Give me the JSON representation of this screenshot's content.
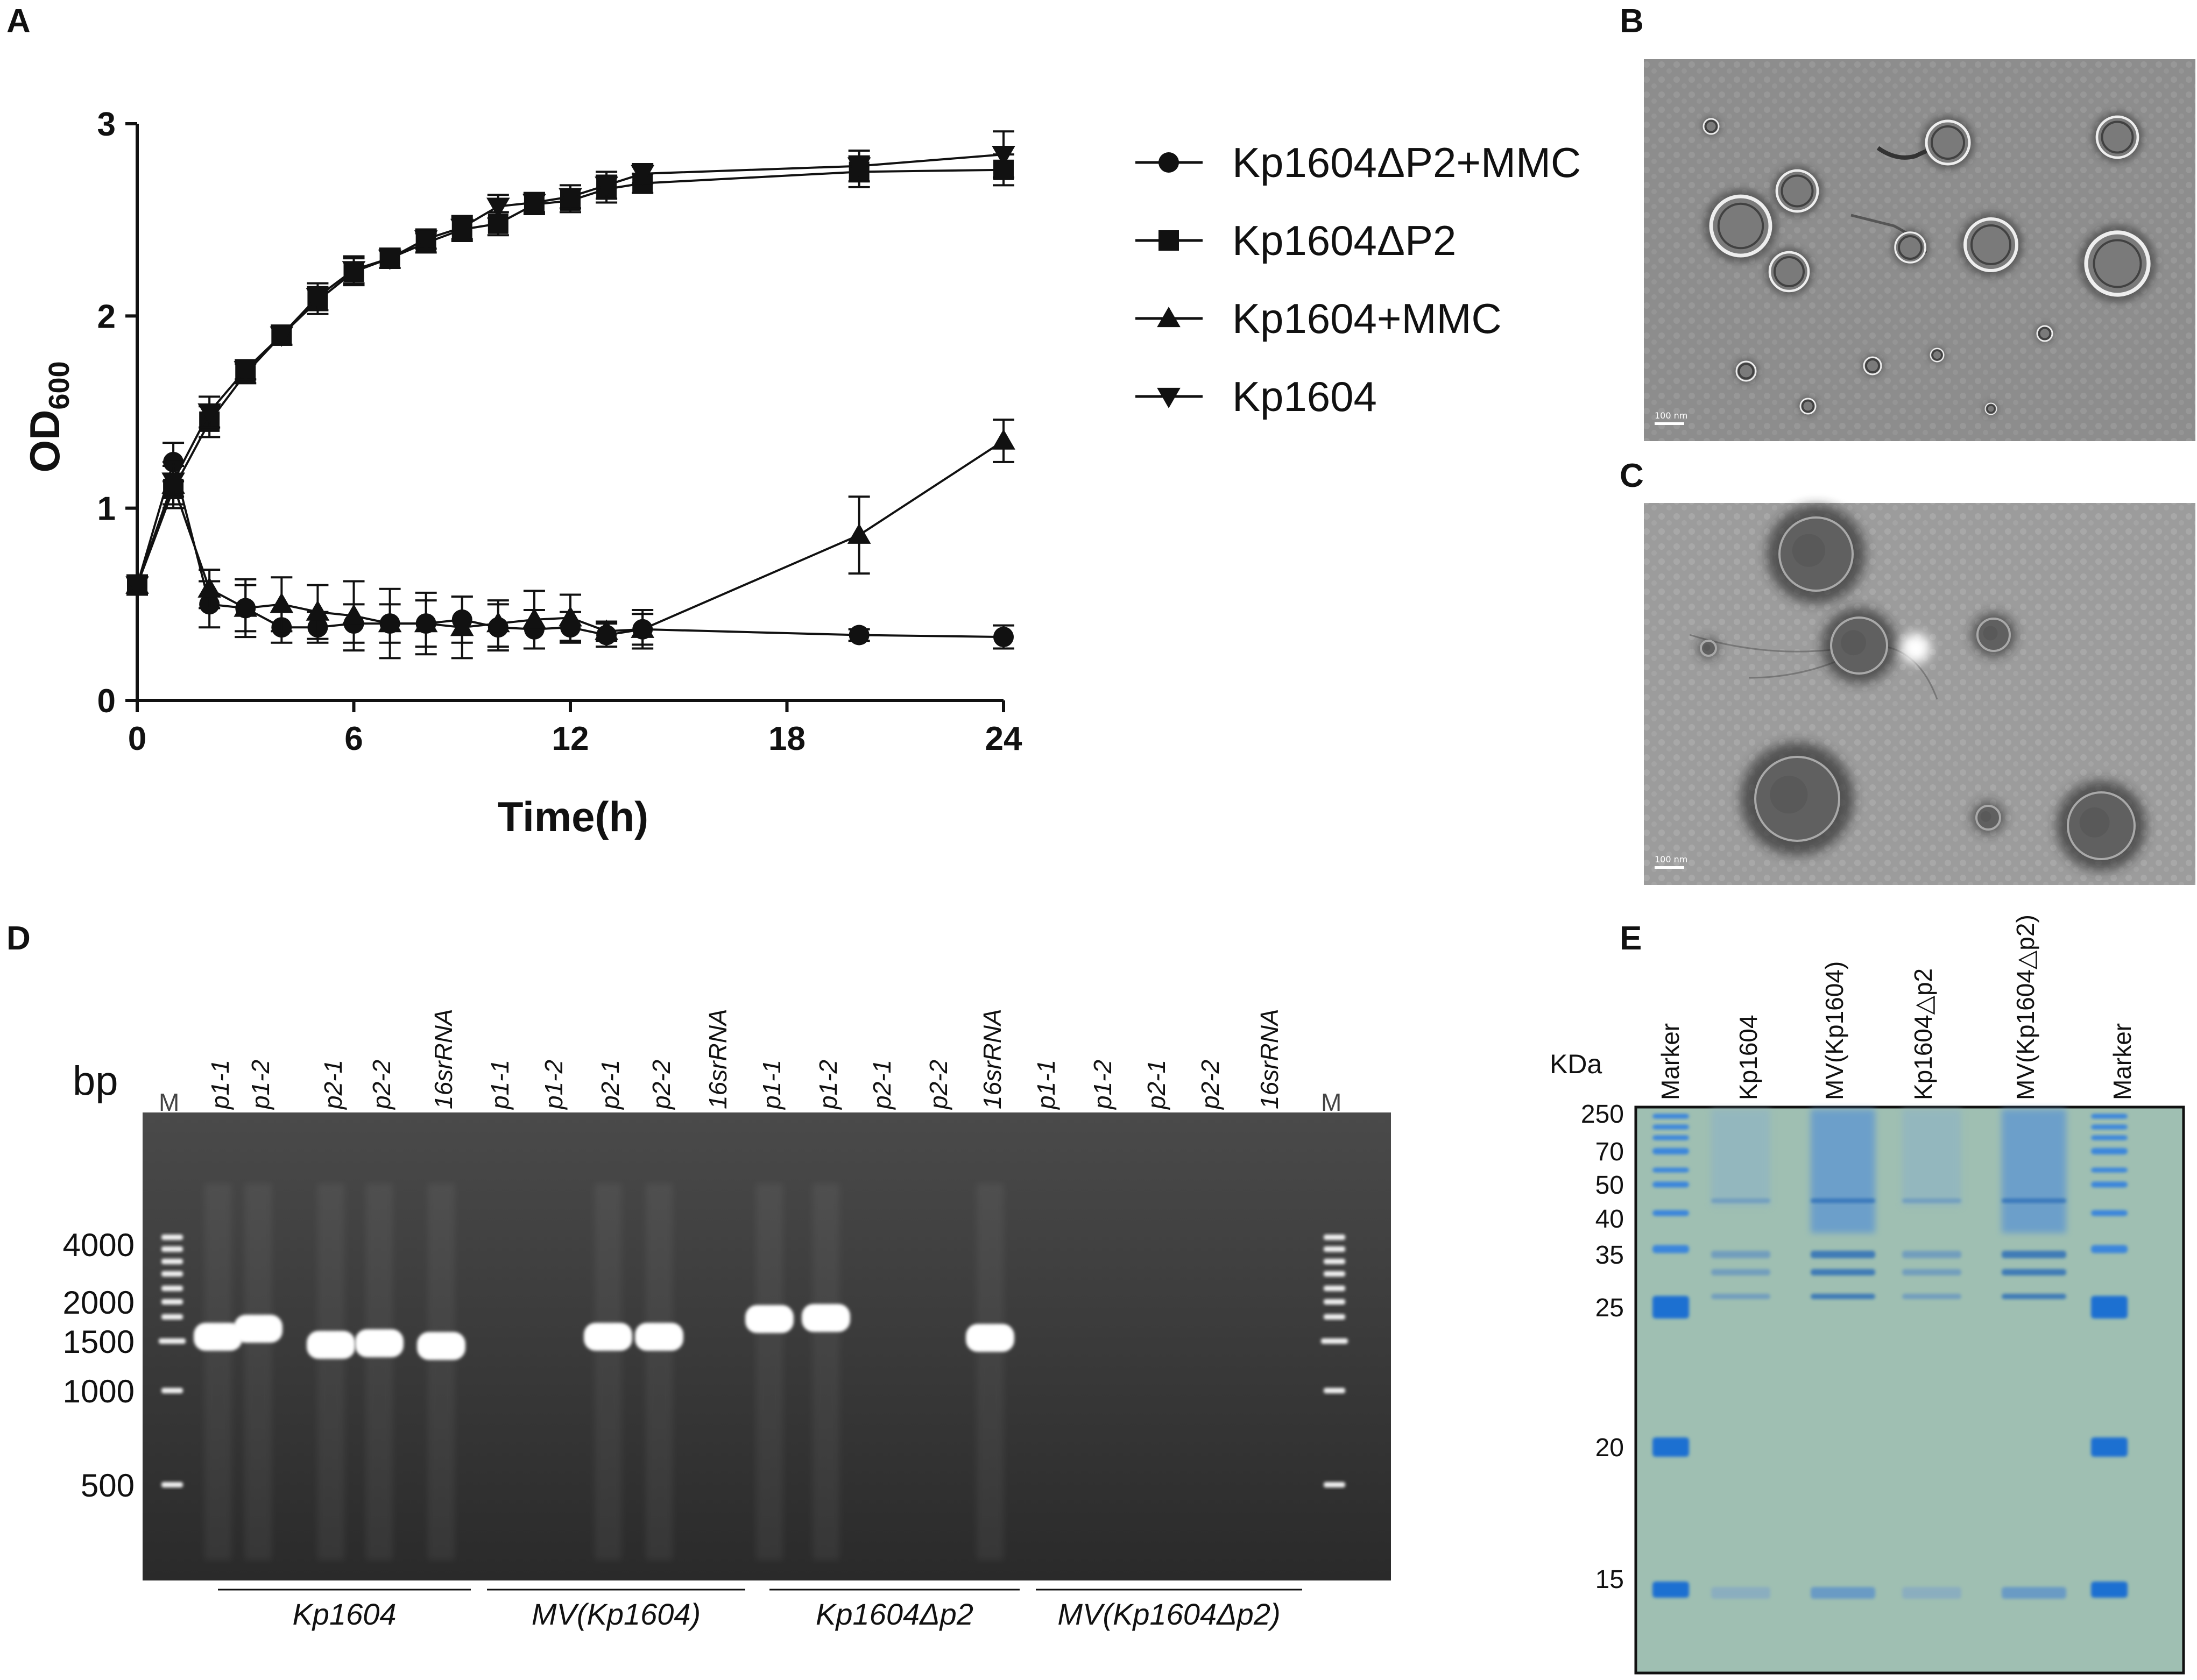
{
  "panels": {
    "A": "A",
    "B": "B",
    "C": "C",
    "D": "D",
    "E": "E"
  },
  "chart_data": [
    {
      "type": "line",
      "panel": "A",
      "title": "",
      "xlabel": "Time(h)",
      "ylabel_main": "OD",
      "ylabel_sub": "600",
      "xlim": [
        0,
        24
      ],
      "ylim": [
        0,
        3
      ],
      "xticks": [
        0,
        6,
        12,
        18,
        24
      ],
      "xtick_labels": [
        "0",
        "6",
        "12",
        "18",
        "24"
      ],
      "yticks": [
        0,
        1,
        2,
        3
      ],
      "ytick_labels": [
        "0",
        "1",
        "2",
        "3"
      ],
      "legend_position": "right",
      "series": [
        {
          "name": "Kp1604ΔP2+MMC",
          "marker": "circle",
          "x": [
            0,
            1,
            2,
            3,
            4,
            5,
            6,
            7,
            8,
            9,
            10,
            11,
            12,
            13,
            14,
            20,
            24
          ],
          "y": [
            0.6,
            1.24,
            0.5,
            0.48,
            0.38,
            0.38,
            0.4,
            0.4,
            0.4,
            0.42,
            0.38,
            0.37,
            0.38,
            0.34,
            0.37,
            0.34,
            0.33
          ],
          "err": [
            0.05,
            0.1,
            0.12,
            0.12,
            0.08,
            0.08,
            0.1,
            0.1,
            0.12,
            0.12,
            0.12,
            0.1,
            0.08,
            0.06,
            0.08,
            0.03,
            0.06
          ]
        },
        {
          "name": "Kp1604ΔP2",
          "marker": "square",
          "x": [
            0,
            1,
            2,
            3,
            4,
            5,
            6,
            7,
            8,
            9,
            10,
            11,
            12,
            13,
            14,
            20,
            24
          ],
          "y": [
            0.6,
            1.1,
            1.45,
            1.7,
            1.9,
            2.08,
            2.23,
            2.3,
            2.38,
            2.45,
            2.48,
            2.58,
            2.6,
            2.66,
            2.69,
            2.75,
            2.76
          ],
          "err": [
            0.05,
            0.08,
            0.08,
            0.05,
            0.05,
            0.07,
            0.07,
            0.05,
            0.05,
            0.06,
            0.06,
            0.05,
            0.06,
            0.07,
            0.05,
            0.08,
            0.08
          ]
        },
        {
          "name": "Kp1604+MMC",
          "marker": "triangle-up",
          "x": [
            0,
            1,
            2,
            3,
            4,
            5,
            6,
            7,
            8,
            9,
            10,
            11,
            12,
            13,
            14,
            20,
            24
          ],
          "y": [
            0.6,
            1.12,
            0.58,
            0.48,
            0.5,
            0.46,
            0.44,
            0.4,
            0.4,
            0.38,
            0.4,
            0.42,
            0.43,
            0.36,
            0.37,
            0.86,
            1.35
          ],
          "err": [
            0.05,
            0.12,
            0.1,
            0.15,
            0.14,
            0.14,
            0.18,
            0.18,
            0.16,
            0.16,
            0.12,
            0.15,
            0.12,
            0.05,
            0.1,
            0.2,
            0.11
          ]
        },
        {
          "name": "Kp1604",
          "marker": "triangle-down",
          "x": [
            0,
            1,
            2,
            3,
            4,
            5,
            6,
            7,
            8,
            9,
            10,
            11,
            12,
            13,
            14,
            20,
            24
          ],
          "y": [
            0.6,
            1.14,
            1.5,
            1.72,
            1.9,
            2.1,
            2.24,
            2.3,
            2.4,
            2.46,
            2.57,
            2.59,
            2.62,
            2.68,
            2.74,
            2.78,
            2.84
          ],
          "err": [
            0.05,
            0.08,
            0.08,
            0.05,
            0.05,
            0.07,
            0.07,
            0.05,
            0.05,
            0.06,
            0.06,
            0.05,
            0.06,
            0.07,
            0.05,
            0.08,
            0.12
          ]
        }
      ]
    }
  ],
  "panel_B": {
    "scale_bar": "100 nm"
  },
  "panel_C": {
    "scale_bar": "100 nm"
  },
  "panel_D": {
    "unit": "bp",
    "marker_label": "M",
    "lanes": [
      "p1-1",
      "p1-2",
      "p2-1",
      "p2-2",
      "16srRNA",
      "p1-1",
      "p1-2",
      "p2-1",
      "p2-2",
      "16srRNA",
      "p1-1",
      "p1-2",
      "p2-1",
      "p2-2",
      "16srRNA",
      "p1-1",
      "p1-2",
      "p2-1",
      "p2-2",
      "16srRNA"
    ],
    "sizes": [
      "4000",
      "2000",
      "1500",
      "1000",
      "500"
    ],
    "groups": [
      "Kp1604",
      "MV(Kp1604)",
      "Kp1604Δp2",
      "MV(Kp1604Δp2)"
    ],
    "band_present": [
      1,
      1,
      1,
      1,
      1,
      0,
      0,
      1,
      1,
      0,
      1,
      1,
      0,
      0,
      1,
      0,
      0,
      0,
      0,
      0
    ]
  },
  "panel_E": {
    "unit": "KDa",
    "lanes": [
      "Marker",
      "Kp1604",
      "MV(Kp1604)",
      "Kp1604△p2",
      "MV(Kp1604△p2)",
      "Marker"
    ],
    "sizes": [
      "250",
      "70",
      "50",
      "40",
      "35",
      "25",
      "20",
      "15"
    ]
  }
}
